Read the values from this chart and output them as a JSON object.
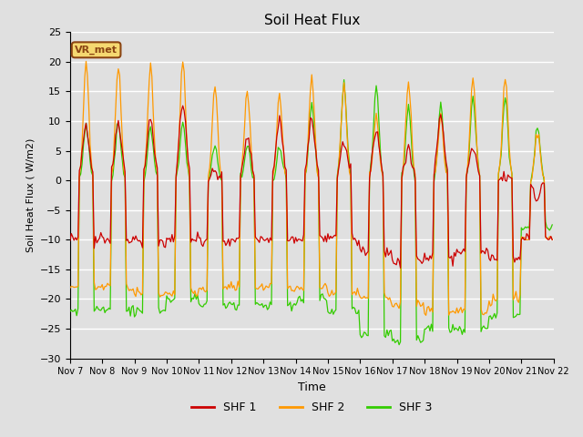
{
  "title": "Soil Heat Flux",
  "xlabel": "Time",
  "ylabel": "Soil Heat Flux ( W/m2)",
  "ylim": [
    -30,
    25
  ],
  "xlim": [
    0,
    360
  ],
  "bg_color": "#e0e0e0",
  "plot_bg_color": "#e0e0e0",
  "grid_color": "white",
  "colors": {
    "shf1": "#cc0000",
    "shf2": "#ff9900",
    "shf3": "#33cc00"
  },
  "legend_label": "VR_met",
  "series_labels": [
    "SHF 1",
    "SHF 2",
    "SHF 3"
  ],
  "xtick_labels": [
    "Nov 7",
    "Nov 8",
    "Nov 9",
    "Nov 10",
    "Nov 11",
    "Nov 12",
    "Nov 13",
    "Nov 14",
    "Nov 15",
    "Nov 16",
    "Nov 17",
    "Nov 18",
    "Nov 19",
    "Nov 20",
    "Nov 21",
    "Nov 22"
  ],
  "xtick_positions": [
    0,
    24,
    48,
    72,
    96,
    120,
    144,
    168,
    192,
    216,
    240,
    264,
    288,
    312,
    336,
    360
  ]
}
